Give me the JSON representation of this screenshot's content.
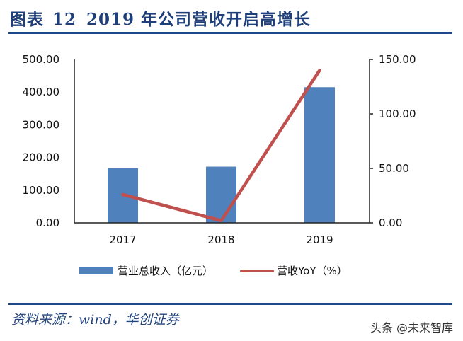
{
  "header": {
    "figure_label": "图表",
    "figure_number": "12",
    "title": "2019 年公司营收开启高增长"
  },
  "chart_data": {
    "type": "bar",
    "title": "2019 年公司营收开启高增长",
    "categories": [
      "2017",
      "2018",
      "2019"
    ],
    "series": [
      {
        "name": "营业总收入（亿元）",
        "type": "bar",
        "axis": "left",
        "color": "#4f81bd",
        "values": [
          167,
          172,
          415
        ]
      },
      {
        "name": "营收YoY（%）",
        "type": "line",
        "axis": "right",
        "color": "#c0504d",
        "values": [
          26,
          2,
          140
        ]
      }
    ],
    "left_axis": {
      "ylim": [
        0,
        500
      ],
      "ticks": [
        "0.00",
        "100.00",
        "200.00",
        "300.00",
        "400.00",
        "500.00"
      ]
    },
    "right_axis": {
      "ylim": [
        0,
        150
      ],
      "ticks": [
        "0.00",
        "50.00",
        "100.00",
        "150.00"
      ]
    },
    "xlabel": "",
    "ylabel": "",
    "grid": false,
    "legend_position": "bottom"
  },
  "legend": {
    "bar_label": "营业总收入（亿元）",
    "line_label": "营收YoY（%）"
  },
  "footer": {
    "source": "资料来源：wind，华创证券",
    "watermark": "头条 @未来智库"
  }
}
